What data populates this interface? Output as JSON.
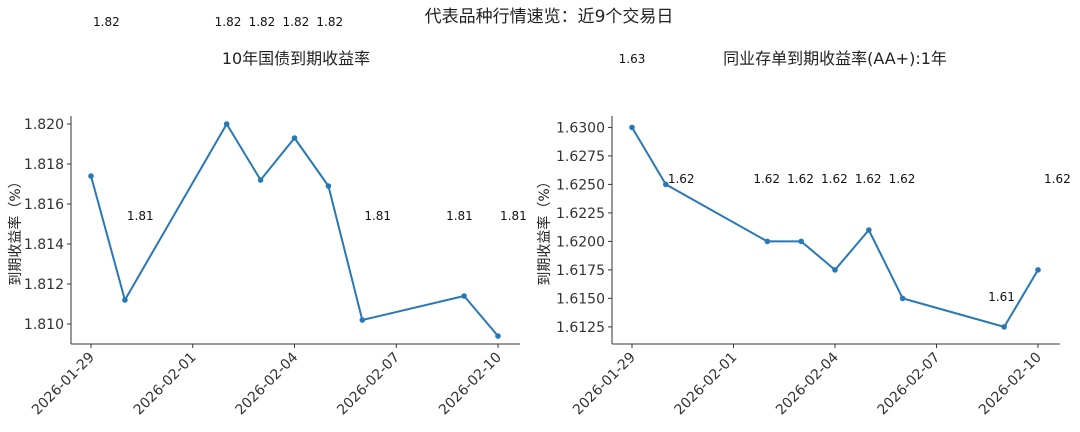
{
  "main_title": "代表品种行情速览：近9个交易日",
  "line_color": "#2878b5",
  "chart_data": [
    {
      "type": "line",
      "title": "10年国债到期收益率",
      "ylabel": "到期收益率（%）",
      "xlabel": "",
      "x": [
        "2026-01-29",
        "2026-01-30",
        "2026-02-02",
        "2026-02-03",
        "2026-02-04",
        "2026-02-05",
        "2026-02-06",
        "2026-02-09",
        "2026-02-10"
      ],
      "values": [
        1.8174,
        1.8112,
        1.82,
        1.8172,
        1.8193,
        1.8169,
        1.8102,
        1.8114,
        1.8094
      ],
      "data_labels": [
        "1.82",
        "1.81",
        "1.82",
        "1.82",
        "1.82",
        "1.82",
        "1.81",
        "1.81",
        "1.81"
      ],
      "x_ticks": [
        "2026-01-29",
        "2026-02-01",
        "2026-02-04",
        "2026-02-07",
        "2026-02-10"
      ],
      "y_ticks": [
        "1.810",
        "1.812",
        "1.814",
        "1.816",
        "1.818",
        "1.820"
      ],
      "ylim": [
        1.809,
        1.8204
      ],
      "grid": false,
      "legend": "none"
    },
    {
      "type": "line",
      "title": "同业存单到期收益率(AA+):1年",
      "ylabel": "到期收益率（%）",
      "xlabel": "",
      "x": [
        "2026-01-29",
        "2026-01-30",
        "2026-02-02",
        "2026-02-03",
        "2026-02-04",
        "2026-02-05",
        "2026-02-06",
        "2026-02-09",
        "2026-02-10"
      ],
      "values": [
        1.63,
        1.625,
        1.62,
        1.62,
        1.6175,
        1.621,
        1.615,
        1.6125,
        1.6175
      ],
      "data_labels": [
        "1.63",
        "1.62",
        "1.62",
        "1.62",
        "1.62",
        "1.62",
        "1.62",
        "1.61",
        "1.62"
      ],
      "x_ticks": [
        "2026-01-29",
        "2026-02-01",
        "2026-02-04",
        "2026-02-07",
        "2026-02-10"
      ],
      "y_ticks": [
        "1.6125",
        "1.6150",
        "1.6175",
        "1.6200",
        "1.6225",
        "1.6250",
        "1.6275",
        "1.6300"
      ],
      "ylim": [
        1.611,
        1.631
      ],
      "grid": false,
      "legend": "none"
    }
  ]
}
